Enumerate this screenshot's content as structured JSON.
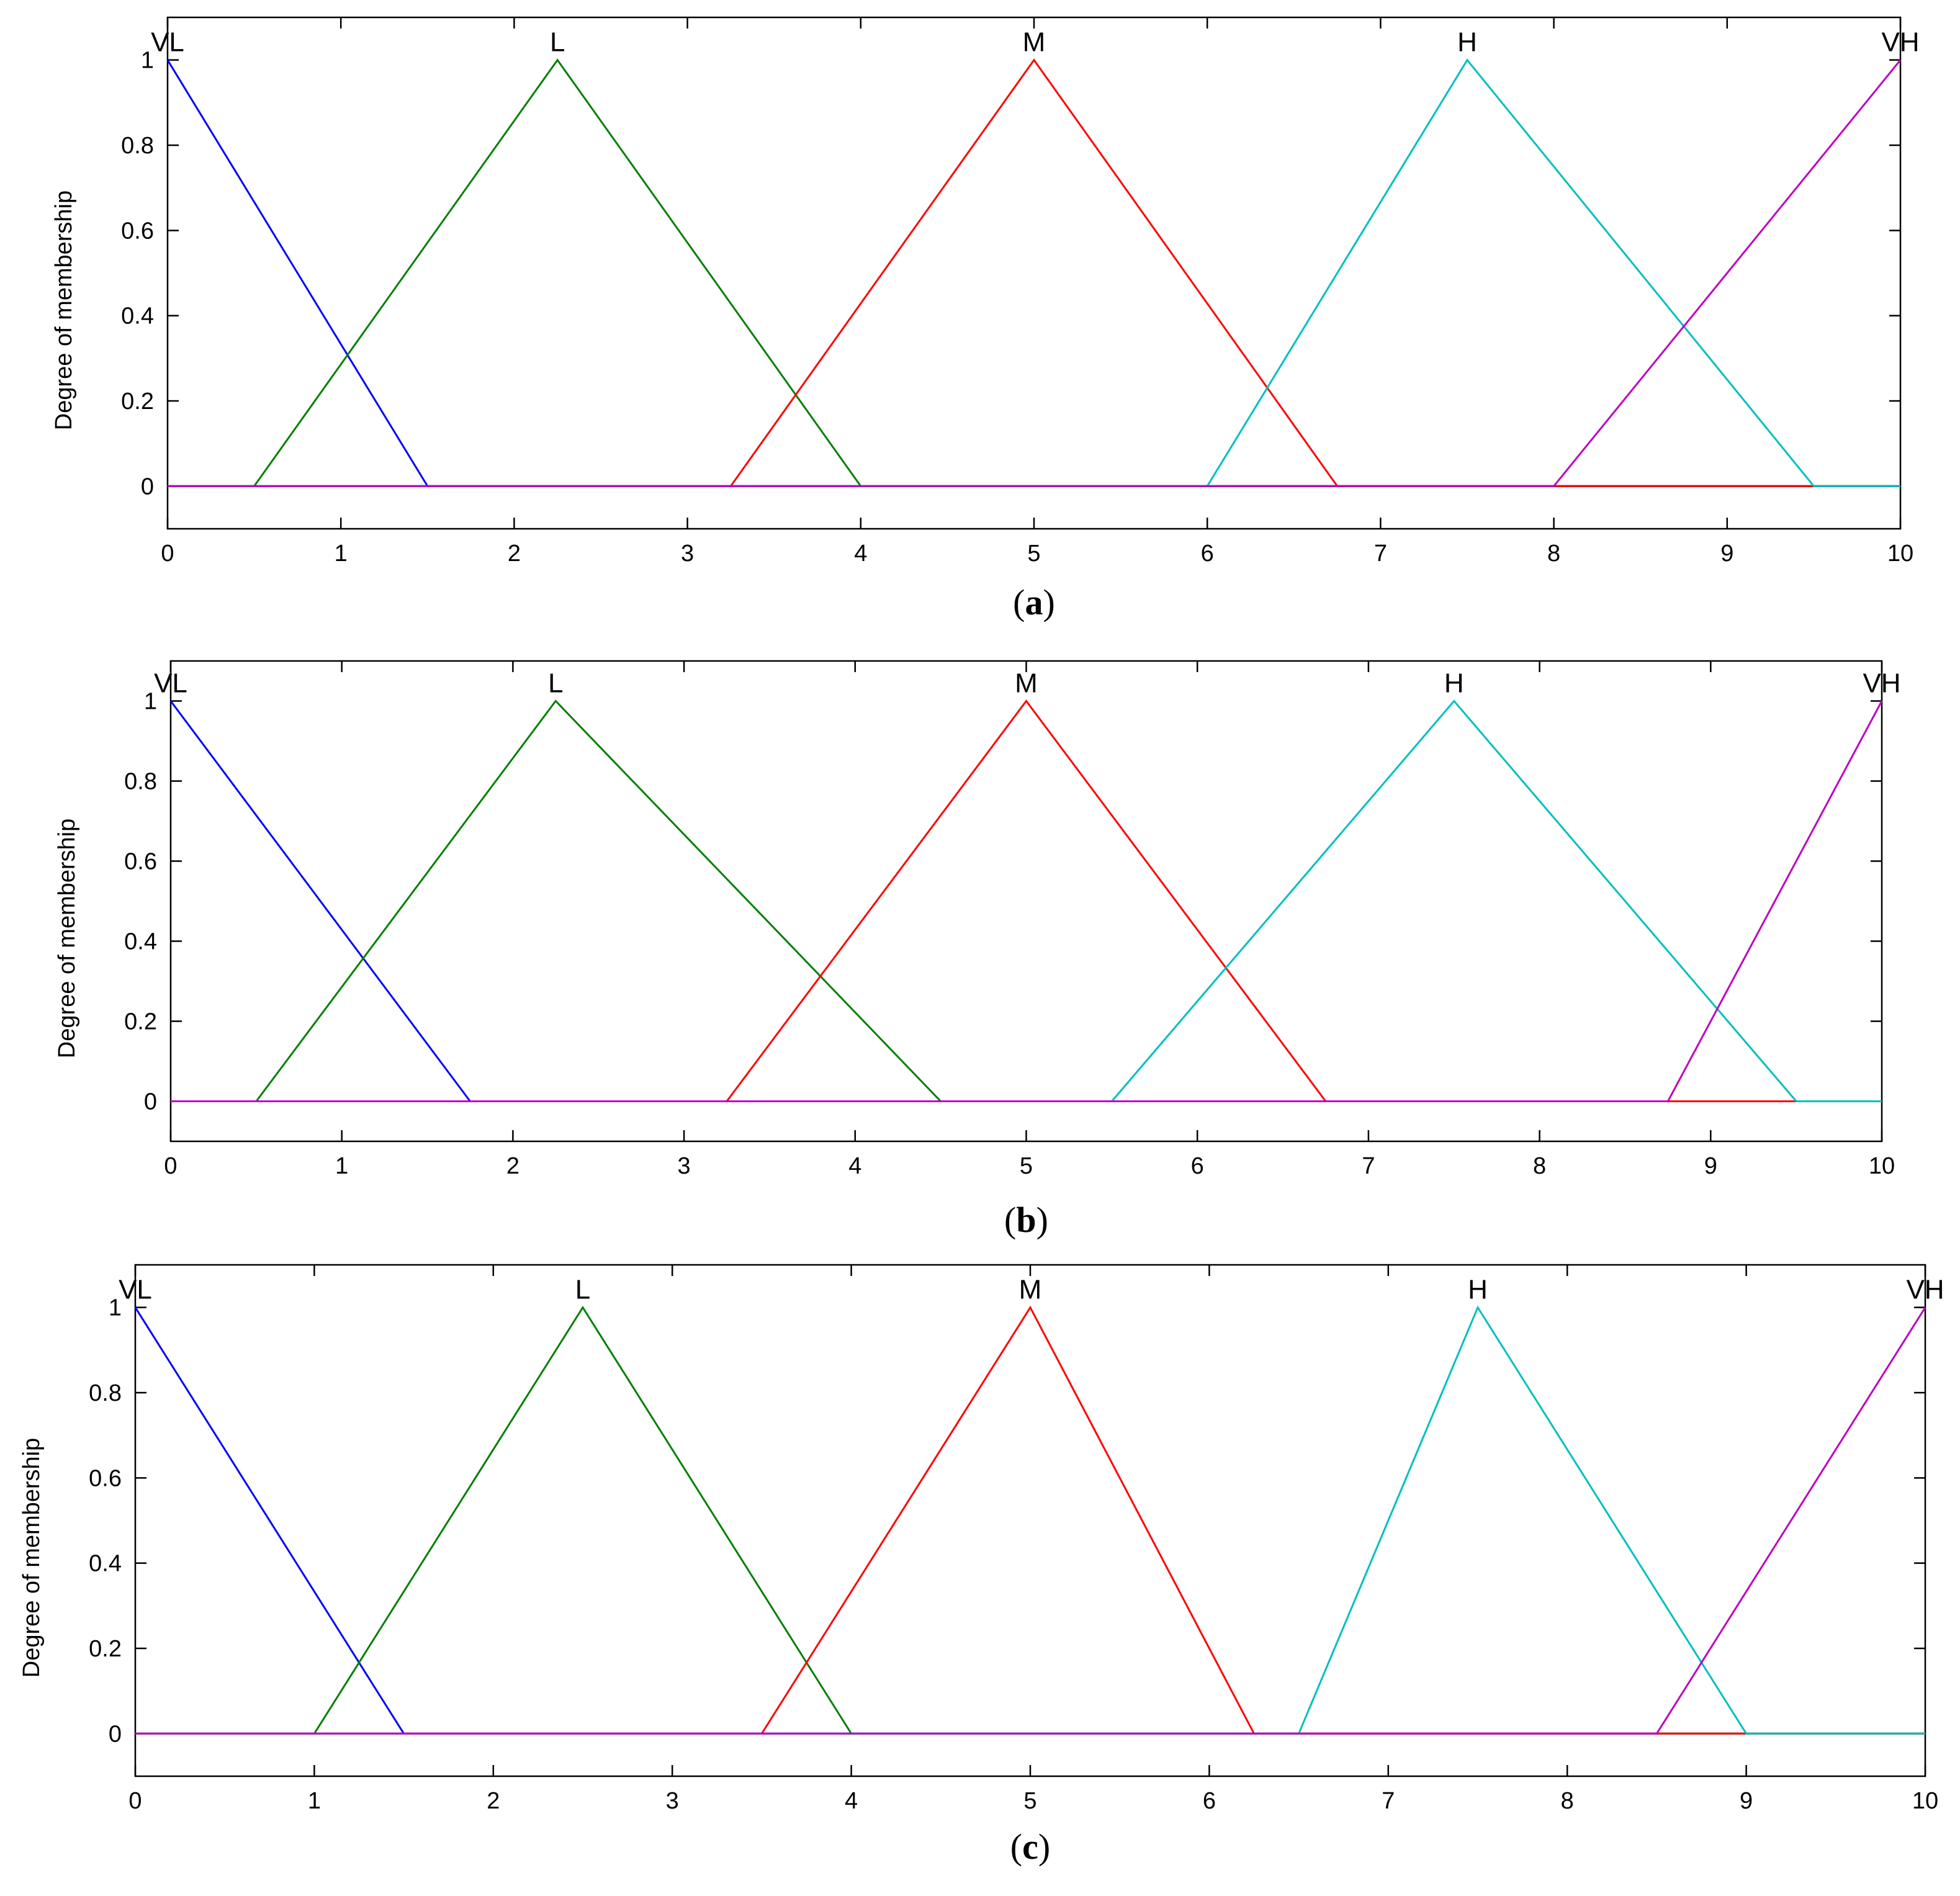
{
  "chart_data": [
    {
      "type": "line",
      "panel": "a",
      "caption_letter": "a",
      "xlabel": "",
      "ylabel": "Degree of membership",
      "xlim": [
        0,
        10
      ],
      "ylim": [
        -0.1,
        1.1
      ],
      "xticks": [
        0,
        1,
        2,
        3,
        4,
        5,
        6,
        7,
        8,
        9,
        10
      ],
      "yticks": [
        0,
        0.2,
        0.4,
        0.6,
        0.8,
        1
      ],
      "grid": false,
      "series": [
        {
          "name": "VL",
          "color": "#0000ff",
          "points": [
            [
              0,
              1
            ],
            [
              1.5,
              0
            ],
            [
              10,
              0
            ]
          ]
        },
        {
          "name": "L",
          "color": "#008000",
          "points": [
            [
              0,
              0
            ],
            [
              0.5,
              0
            ],
            [
              2.25,
              1
            ],
            [
              4,
              0
            ],
            [
              10,
              0
            ]
          ]
        },
        {
          "name": "M",
          "color": "#ff0000",
          "points": [
            [
              0,
              0
            ],
            [
              3.25,
              0
            ],
            [
              5,
              1
            ],
            [
              6.75,
              0
            ],
            [
              10,
              0
            ]
          ]
        },
        {
          "name": "H",
          "color": "#00bfbf",
          "points": [
            [
              0,
              0
            ],
            [
              6,
              0
            ],
            [
              7.5,
              1
            ],
            [
              9.5,
              0
            ],
            [
              10,
              0
            ]
          ]
        },
        {
          "name": "VH",
          "color": "#bf00bf",
          "points": [
            [
              0,
              0
            ],
            [
              8,
              0
            ],
            [
              10,
              1
            ]
          ]
        }
      ]
    },
    {
      "type": "line",
      "panel": "b",
      "caption_letter": "b",
      "xlabel": "",
      "ylabel": "Degree of membership",
      "xlim": [
        0,
        10
      ],
      "ylim": [
        -0.1,
        1.1
      ],
      "xticks": [
        0,
        1,
        2,
        3,
        4,
        5,
        6,
        7,
        8,
        9,
        10
      ],
      "yticks": [
        0,
        0.2,
        0.4,
        0.6,
        0.8,
        1
      ],
      "grid": false,
      "series": [
        {
          "name": "VL",
          "color": "#0000ff",
          "points": [
            [
              0,
              1
            ],
            [
              1.75,
              0
            ],
            [
              10,
              0
            ]
          ]
        },
        {
          "name": "L",
          "color": "#008000",
          "points": [
            [
              0,
              0
            ],
            [
              0.5,
              0
            ],
            [
              2.25,
              1
            ],
            [
              4.5,
              0
            ],
            [
              10,
              0
            ]
          ]
        },
        {
          "name": "M",
          "color": "#ff0000",
          "points": [
            [
              0,
              0
            ],
            [
              3.25,
              0
            ],
            [
              5,
              1
            ],
            [
              6.75,
              0
            ],
            [
              10,
              0
            ]
          ]
        },
        {
          "name": "H",
          "color": "#00bfbf",
          "points": [
            [
              0,
              0
            ],
            [
              5.5,
              0
            ],
            [
              7.5,
              1
            ],
            [
              9.5,
              0
            ],
            [
              10,
              0
            ]
          ]
        },
        {
          "name": "VH",
          "color": "#bf00bf",
          "points": [
            [
              0,
              0
            ],
            [
              8.75,
              0
            ],
            [
              10,
              1
            ]
          ]
        }
      ]
    },
    {
      "type": "line",
      "panel": "c",
      "caption_letter": "c",
      "xlabel": "",
      "ylabel": "Degree of membership",
      "xlim": [
        0,
        10
      ],
      "ylim": [
        -0.1,
        1.1
      ],
      "xticks": [
        0,
        1,
        2,
        3,
        4,
        5,
        6,
        7,
        8,
        9,
        10
      ],
      "yticks": [
        0,
        0.2,
        0.4,
        0.6,
        0.8,
        1
      ],
      "grid": false,
      "series": [
        {
          "name": "VL",
          "color": "#0000ff",
          "points": [
            [
              0,
              1
            ],
            [
              1.5,
              0
            ],
            [
              10,
              0
            ]
          ]
        },
        {
          "name": "L",
          "color": "#008000",
          "points": [
            [
              0,
              0
            ],
            [
              1,
              0
            ],
            [
              2.5,
              1
            ],
            [
              4,
              0
            ],
            [
              10,
              0
            ]
          ]
        },
        {
          "name": "M",
          "color": "#ff0000",
          "points": [
            [
              0,
              0
            ],
            [
              3.5,
              0
            ],
            [
              5,
              1
            ],
            [
              6.25,
              0
            ],
            [
              10,
              0
            ]
          ]
        },
        {
          "name": "H",
          "color": "#00bfbf",
          "points": [
            [
              0,
              0
            ],
            [
              6.5,
              0
            ],
            [
              7.5,
              1
            ],
            [
              9,
              0
            ],
            [
              10,
              0
            ]
          ]
        },
        {
          "name": "VH",
          "color": "#bf00bf",
          "points": [
            [
              0,
              0
            ],
            [
              8.5,
              0
            ],
            [
              10,
              1
            ]
          ]
        }
      ]
    }
  ]
}
